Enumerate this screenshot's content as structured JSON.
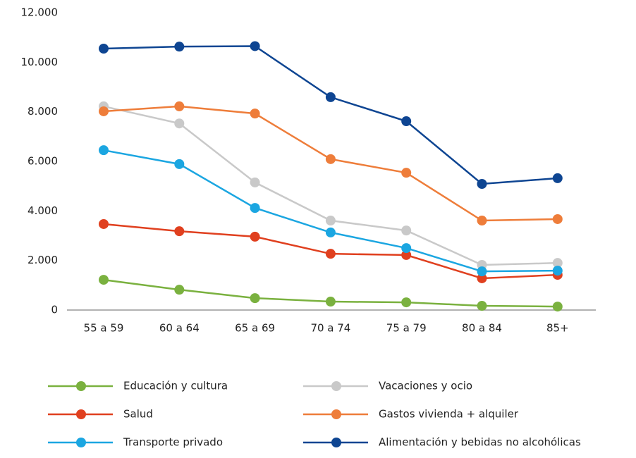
{
  "chart_data": {
    "type": "line",
    "categories": [
      "55 a 59",
      "60 a 64",
      "65 a 69",
      "70 a 74",
      "75 a 79",
      "80 a 84",
      "85+"
    ],
    "series": [
      {
        "name": "Educación y cultura",
        "color": "#7ab13f",
        "values": [
          1220,
          820,
          480,
          340,
          310,
          170,
          140
        ]
      },
      {
        "name": "Vacaciones y ocio",
        "color": "#c9c9c9",
        "values": [
          8220,
          7530,
          5150,
          3610,
          3210,
          1820,
          1900
        ]
      },
      {
        "name": "Salud",
        "color": "#e0401f",
        "values": [
          3470,
          3180,
          2960,
          2270,
          2220,
          1280,
          1420
        ]
      },
      {
        "name": "Gastos vivienda + alquiler",
        "color": "#ee7d3a",
        "values": [
          8020,
          8220,
          7930,
          6090,
          5540,
          3610,
          3670
        ]
      },
      {
        "name": "Transporte privado",
        "color": "#1ba6e1",
        "values": [
          6450,
          5890,
          4120,
          3130,
          2500,
          1560,
          1590
        ]
      },
      {
        "name": "Alimentación y bebidas no alcohólicas",
        "color": "#0e4592",
        "values": [
          10550,
          10630,
          10650,
          8590,
          7620,
          5090,
          5320
        ]
      }
    ],
    "ylim": [
      0,
      12000
    ],
    "yticks": [
      0,
      {
        "value": 2000,
        "label": "2.000"
      },
      {
        "value": 4000,
        "label": "4.000"
      },
      {
        "value": 6000,
        "label": "6.000"
      },
      {
        "value": 8000,
        "label": "8.000"
      },
      {
        "value": 10000,
        "label": "10.000"
      },
      {
        "value": 12000,
        "label": "12.000"
      }
    ],
    "grid": false
  }
}
